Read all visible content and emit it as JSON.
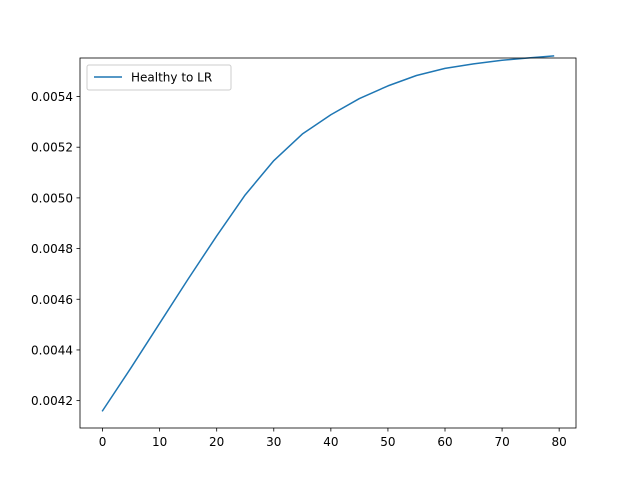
{
  "chart_data": {
    "type": "line",
    "title": "",
    "xlabel": "",
    "ylabel": "",
    "xlim": [
      -3.95,
      82.95
    ],
    "ylim": [
      0.004092,
      0.005552
    ],
    "x_ticks": [
      0,
      10,
      20,
      30,
      40,
      50,
      60,
      70,
      80
    ],
    "x_tick_labels": [
      "0",
      "10",
      "20",
      "30",
      "40",
      "50",
      "60",
      "70",
      "80"
    ],
    "y_ticks": [
      0.0042,
      0.0044,
      0.0046,
      0.0048,
      0.005,
      0.0052,
      0.0054
    ],
    "y_tick_labels": [
      "0.0042",
      "0.0044",
      "0.0046",
      "0.0048",
      "0.0050",
      "0.0052",
      "0.0054"
    ],
    "grid": false,
    "legend_position": "upper-left",
    "series": [
      {
        "name": "Healthy to LR",
        "color": "#1f77b4",
        "x": [
          0,
          5,
          10,
          15,
          20,
          25,
          30,
          35,
          40,
          45,
          50,
          55,
          60,
          65,
          70,
          75,
          79
        ],
        "y": [
          0.00416,
          0.00433,
          0.004505,
          0.00468,
          0.00485,
          0.005012,
          0.005147,
          0.005252,
          0.005328,
          0.005392,
          0.005442,
          0.005483,
          0.005511,
          0.005529,
          0.005543,
          0.005553,
          0.00556
        ]
      }
    ]
  }
}
